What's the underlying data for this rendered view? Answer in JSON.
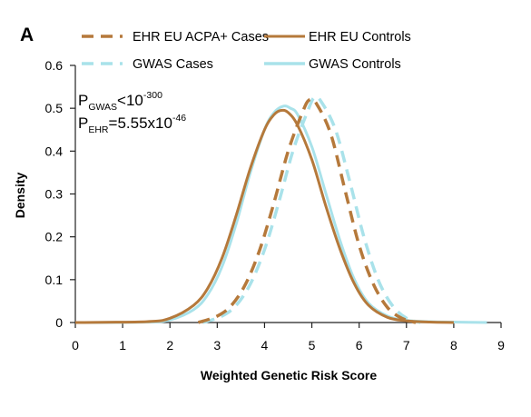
{
  "panel_label": "A",
  "colors": {
    "ehr": "#b5793b",
    "gwas": "#a9e2ea",
    "axis": "#222222"
  },
  "annotation": {
    "line1": {
      "main": "P",
      "sub": "GWAS",
      "rest": "<10",
      "sup": "-300"
    },
    "line2": {
      "main": "P",
      "sub": "EHR",
      "rest": "=5.55x10",
      "sup": "-46"
    }
  },
  "chart_data": {
    "type": "line",
    "title": "",
    "xlabel": "Weighted Genetic Risk Score",
    "ylabel": "Density",
    "xlim": [
      0,
      9
    ],
    "ylim": [
      0,
      0.6
    ],
    "x_ticks": [
      "0",
      "1",
      "2",
      "3",
      "4",
      "5",
      "6",
      "7",
      "8",
      "9"
    ],
    "y_ticks": [
      "0",
      "0.1",
      "0.2",
      "0.3",
      "0.4",
      "0.5",
      "0.6"
    ],
    "grid": false,
    "legend_position": "top",
    "series": [
      {
        "name": "EHR EU ACPA+ Cases",
        "style": "dashed",
        "color": "#b5793b",
        "x": [
          2.6,
          3.0,
          3.3,
          3.6,
          3.9,
          4.2,
          4.5,
          4.8,
          4.95,
          5.1,
          5.4,
          5.7,
          6.0,
          6.3,
          6.6,
          6.9,
          7.2
        ],
        "y": [
          0.0,
          0.015,
          0.04,
          0.09,
          0.17,
          0.28,
          0.4,
          0.49,
          0.52,
          0.51,
          0.44,
          0.31,
          0.18,
          0.09,
          0.035,
          0.01,
          0.0
        ]
      },
      {
        "name": "EHR EU Controls",
        "style": "solid",
        "color": "#b5793b",
        "x": [
          0.0,
          1.5,
          2.0,
          2.5,
          2.8,
          3.1,
          3.4,
          3.7,
          4.0,
          4.2,
          4.35,
          4.5,
          4.7,
          5.0,
          5.3,
          5.6,
          5.9,
          6.2,
          6.6,
          7.0,
          7.5,
          8.0
        ],
        "y": [
          0.0,
          0.002,
          0.01,
          0.04,
          0.08,
          0.15,
          0.25,
          0.36,
          0.45,
          0.485,
          0.495,
          0.49,
          0.46,
          0.38,
          0.27,
          0.17,
          0.09,
          0.04,
          0.012,
          0.004,
          0.001,
          0.0
        ]
      },
      {
        "name": "GWAS Cases",
        "style": "dashed",
        "color": "#a9e2ea",
        "x": [
          2.7,
          3.1,
          3.4,
          3.7,
          4.0,
          4.3,
          4.6,
          4.9,
          5.05,
          5.2,
          5.5,
          5.8,
          6.1,
          6.4,
          6.7,
          7.0,
          7.3
        ],
        "y": [
          0.0,
          0.015,
          0.04,
          0.09,
          0.17,
          0.28,
          0.4,
          0.49,
          0.525,
          0.515,
          0.45,
          0.33,
          0.2,
          0.1,
          0.04,
          0.01,
          0.0
        ]
      },
      {
        "name": "GWAS Controls",
        "style": "solid",
        "color": "#a9e2ea",
        "x": [
          0.0,
          1.5,
          2.0,
          2.5,
          2.8,
          3.1,
          3.4,
          3.7,
          4.0,
          4.2,
          4.4,
          4.55,
          4.7,
          5.0,
          5.3,
          5.6,
          5.9,
          6.2,
          6.6,
          7.0,
          7.5,
          8.0,
          8.7
        ],
        "y": [
          0.0,
          0.001,
          0.006,
          0.03,
          0.065,
          0.13,
          0.23,
          0.35,
          0.45,
          0.49,
          0.505,
          0.5,
          0.485,
          0.41,
          0.3,
          0.19,
          0.1,
          0.045,
          0.015,
          0.005,
          0.002,
          0.001,
          0.0
        ]
      }
    ]
  }
}
